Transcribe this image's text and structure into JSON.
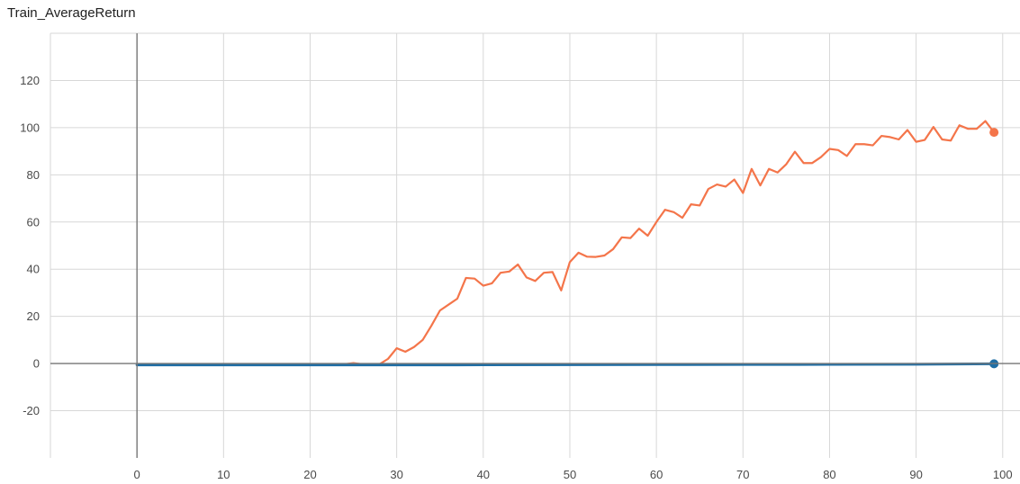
{
  "chart_data": {
    "type": "line",
    "title": "Train_AverageReturn",
    "xlabel": "",
    "ylabel": "",
    "xlim": [
      -10,
      102
    ],
    "ylim": [
      -40,
      140
    ],
    "x_ticks": [
      0,
      10,
      20,
      30,
      40,
      50,
      60,
      70,
      80,
      90,
      100
    ],
    "y_ticks": [
      -20,
      0,
      20,
      40,
      60,
      80,
      100,
      120
    ],
    "grid": true,
    "legend": "none",
    "series": [
      {
        "name": "",
        "color": "#f4754a",
        "x": [
          0,
          1,
          2,
          3,
          4,
          5,
          6,
          7,
          8,
          9,
          10,
          11,
          12,
          13,
          14,
          15,
          16,
          17,
          18,
          19,
          20,
          21,
          22,
          23,
          24,
          25,
          26,
          27,
          28,
          29,
          30,
          31,
          32,
          33,
          34,
          35,
          36,
          37,
          38,
          39,
          40,
          41,
          42,
          43,
          44,
          45,
          46,
          47,
          48,
          49,
          50,
          51,
          52,
          53,
          54,
          55,
          56,
          57,
          58,
          59,
          60,
          61,
          62,
          63,
          64,
          65,
          66,
          67,
          68,
          69,
          70,
          71,
          72,
          73,
          74,
          75,
          76,
          77,
          78,
          79,
          80,
          81,
          82,
          83,
          84,
          85,
          86,
          87,
          88,
          89,
          90,
          91,
          92,
          93,
          94,
          95,
          96,
          97,
          98,
          99
        ],
        "values": [
          -0.3,
          -0.3,
          -0.3,
          -0.3,
          -0.3,
          -0.3,
          -0.3,
          -0.3,
          -0.3,
          -0.3,
          -0.3,
          -0.3,
          -0.3,
          -0.3,
          -0.3,
          -0.3,
          -0.3,
          -0.3,
          -0.3,
          -0.3,
          -0.3,
          -0.3,
          -0.3,
          -0.3,
          -0.3,
          0.2,
          -0.3,
          -0.3,
          -0.3,
          2,
          6.5,
          5,
          7,
          10,
          16,
          22.5,
          25,
          27.5,
          36.3,
          36,
          33,
          34,
          38.5,
          39,
          42,
          36.5,
          35,
          38.5,
          38.8,
          31,
          43,
          47,
          45.3,
          45.2,
          45.8,
          48.5,
          53.5,
          53.2,
          57.2,
          54.2,
          60,
          65.2,
          64.2,
          61.8,
          67.5,
          67,
          74,
          75.9,
          75,
          78,
          72.3,
          82.5,
          75.5,
          82.5,
          81,
          84.5,
          89.8,
          85,
          85,
          87.5,
          91,
          90.5,
          88,
          93,
          93,
          92.5,
          96.5,
          96,
          95,
          99,
          94,
          94.8,
          100.3,
          95,
          94.5,
          101,
          99.5,
          99.5,
          102.8,
          98
        ]
      },
      {
        "name": "",
        "color": "#1f6ea5",
        "x": [
          0,
          10,
          20,
          30,
          40,
          50,
          60,
          70,
          80,
          90,
          99
        ],
        "values": [
          -0.6,
          -0.6,
          -0.6,
          -0.6,
          -0.55,
          -0.5,
          -0.45,
          -0.4,
          -0.35,
          -0.3,
          -0.1
        ]
      }
    ]
  }
}
